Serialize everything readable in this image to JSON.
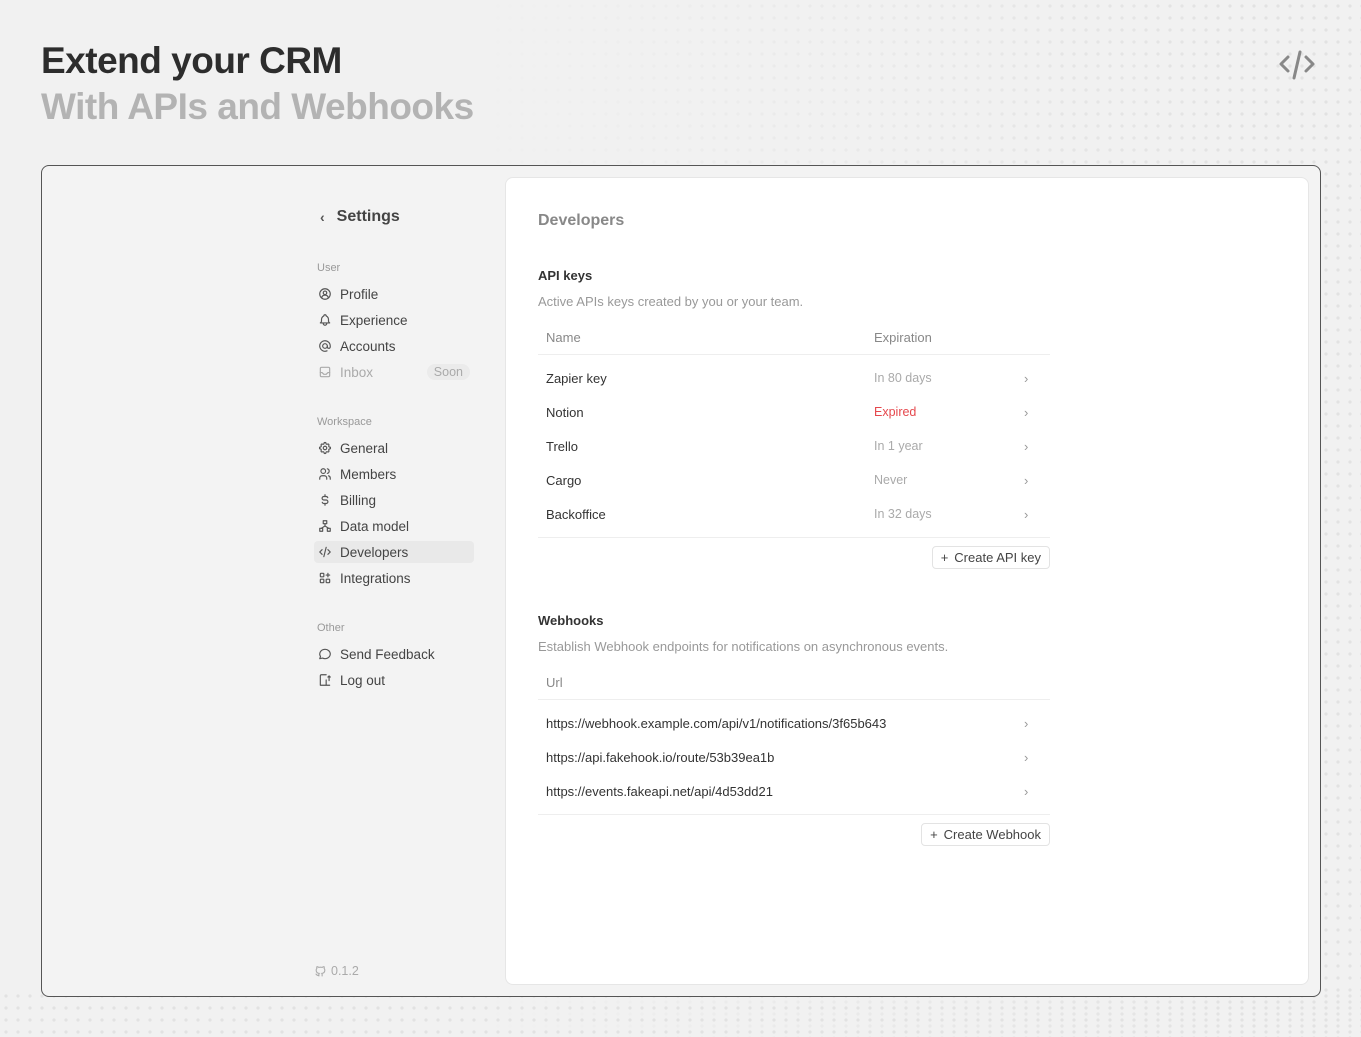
{
  "hero": {
    "title": "Extend your CRM",
    "subtitle": "With APIs and Webhooks",
    "icon": "code-icon"
  },
  "sidebar": {
    "back_label": "Settings",
    "sections": [
      {
        "label": "User",
        "items": [
          {
            "label": "Profile",
            "icon": "user-circle-icon"
          },
          {
            "label": "Experience",
            "icon": "bell-icon"
          },
          {
            "label": "Accounts",
            "icon": "at-icon"
          },
          {
            "label": "Inbox",
            "icon": "inbox-icon",
            "badge": "Soon",
            "disabled": true
          }
        ]
      },
      {
        "label": "Workspace",
        "items": [
          {
            "label": "General",
            "icon": "gear-icon"
          },
          {
            "label": "Members",
            "icon": "users-icon"
          },
          {
            "label": "Billing",
            "icon": "dollar-icon"
          },
          {
            "label": "Data model",
            "icon": "hierarchy-icon"
          },
          {
            "label": "Developers",
            "icon": "code-icon",
            "active": true
          },
          {
            "label": "Integrations",
            "icon": "apps-icon"
          }
        ]
      },
      {
        "label": "Other",
        "items": [
          {
            "label": "Send Feedback",
            "icon": "message-icon"
          },
          {
            "label": "Log out",
            "icon": "logout-icon"
          }
        ]
      }
    ],
    "version": "0.1.2"
  },
  "main": {
    "title": "Developers",
    "api_keys": {
      "title": "API keys",
      "description": "Active APIs keys created by you or your team.",
      "columns": [
        "Name",
        "Expiration"
      ],
      "rows": [
        {
          "name": "Zapier key",
          "expiration": "In 80 days"
        },
        {
          "name": "Notion",
          "expiration": "Expired",
          "status": "expired"
        },
        {
          "name": "Trello",
          "expiration": "In 1 year"
        },
        {
          "name": "Cargo",
          "expiration": "Never"
        },
        {
          "name": "Backoffice",
          "expiration": "In 32 days"
        }
      ],
      "create_label": "Create API key"
    },
    "webhooks": {
      "title": "Webhooks",
      "description": "Establish Webhook endpoints for notifications on asynchronous events.",
      "columns": [
        "Url"
      ],
      "rows": [
        "https://webhook.example.com/api/v1/notifications/3f65b643",
        "https://api.fakehook.io/route/53b39ea1b",
        "https://events.fakeapi.net/api/4d53dd21"
      ],
      "create_label": "Create Webhook"
    }
  },
  "colors": {
    "expired": "#e5484d",
    "accent": "#333333"
  }
}
